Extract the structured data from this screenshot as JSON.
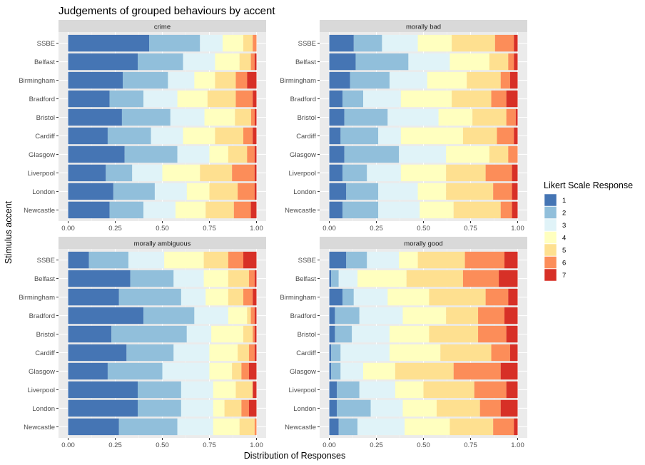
{
  "chart_data": {
    "type": "bar",
    "orientation": "horizontal",
    "stacked": true,
    "title": "Judgements of grouped behaviours by accent",
    "xlabel": "Distribution of Responses",
    "ylabel": "Stimulus accent",
    "xlim": [
      0,
      1
    ],
    "xticks": [
      "0.00",
      "0.25",
      "0.50",
      "0.75",
      "1.00"
    ],
    "grid": true,
    "legend": {
      "title": "Likert Scale Response",
      "position": "right",
      "entries": [
        "1",
        "2",
        "3",
        "4",
        "5",
        "6",
        "7"
      ],
      "colors": [
        "#4575b4",
        "#91bfdb",
        "#e0f3f8",
        "#ffffbf",
        "#fee090",
        "#fc8d59",
        "#d73027"
      ]
    },
    "categories": [
      "SSBE",
      "Belfast",
      "Birmingham",
      "Bradford",
      "Bristol",
      "Cardiff",
      "Glasgow",
      "Liverpool",
      "London",
      "Newcastle"
    ],
    "panels": [
      {
        "title": "crime",
        "rows": [
          [
            0.43,
            0.27,
            0.12,
            0.11,
            0.05,
            0.02,
            0.0
          ],
          [
            0.37,
            0.24,
            0.17,
            0.13,
            0.06,
            0.02,
            0.01
          ],
          [
            0.29,
            0.24,
            0.14,
            0.11,
            0.11,
            0.06,
            0.05
          ],
          [
            0.22,
            0.18,
            0.18,
            0.16,
            0.15,
            0.09,
            0.02
          ],
          [
            0.3,
            0.27,
            0.19,
            0.17,
            0.09,
            0.02,
            0.01
          ],
          [
            0.21,
            0.23,
            0.17,
            0.17,
            0.15,
            0.05,
            0.02
          ],
          [
            0.3,
            0.28,
            0.17,
            0.1,
            0.1,
            0.04,
            0.01
          ],
          [
            0.2,
            0.14,
            0.16,
            0.2,
            0.17,
            0.12,
            0.01
          ],
          [
            0.24,
            0.22,
            0.17,
            0.12,
            0.15,
            0.09,
            0.01
          ],
          [
            0.22,
            0.18,
            0.17,
            0.16,
            0.15,
            0.09,
            0.03
          ]
        ]
      },
      {
        "title": "morally bad",
        "rows": [
          [
            0.13,
            0.15,
            0.19,
            0.18,
            0.23,
            0.1,
            0.02
          ],
          [
            0.14,
            0.28,
            0.22,
            0.21,
            0.1,
            0.03,
            0.02
          ],
          [
            0.11,
            0.21,
            0.2,
            0.21,
            0.18,
            0.05,
            0.04
          ],
          [
            0.07,
            0.11,
            0.2,
            0.27,
            0.21,
            0.08,
            0.06
          ],
          [
            0.08,
            0.23,
            0.27,
            0.18,
            0.18,
            0.05,
            0.01
          ],
          [
            0.06,
            0.2,
            0.12,
            0.33,
            0.18,
            0.09,
            0.02
          ],
          [
            0.08,
            0.29,
            0.25,
            0.23,
            0.1,
            0.05,
            0.0
          ],
          [
            0.07,
            0.13,
            0.18,
            0.24,
            0.21,
            0.14,
            0.03
          ],
          [
            0.09,
            0.17,
            0.21,
            0.15,
            0.25,
            0.1,
            0.03
          ],
          [
            0.07,
            0.19,
            0.22,
            0.18,
            0.25,
            0.06,
            0.03
          ]
        ]
      },
      {
        "title": "morally ambiguous",
        "rows": [
          [
            0.11,
            0.21,
            0.19,
            0.21,
            0.13,
            0.08,
            0.07
          ],
          [
            0.33,
            0.23,
            0.16,
            0.13,
            0.11,
            0.03,
            0.01
          ],
          [
            0.27,
            0.33,
            0.13,
            0.12,
            0.08,
            0.05,
            0.02
          ],
          [
            0.4,
            0.27,
            0.18,
            0.1,
            0.02,
            0.02,
            0.01
          ],
          [
            0.23,
            0.4,
            0.13,
            0.17,
            0.05,
            0.01,
            0.01
          ],
          [
            0.31,
            0.25,
            0.19,
            0.15,
            0.06,
            0.03,
            0.01
          ],
          [
            0.21,
            0.29,
            0.25,
            0.12,
            0.05,
            0.04,
            0.04
          ],
          [
            0.37,
            0.23,
            0.17,
            0.12,
            0.09,
            0.0,
            0.02
          ],
          [
            0.37,
            0.23,
            0.17,
            0.06,
            0.09,
            0.04,
            0.04
          ],
          [
            0.27,
            0.31,
            0.19,
            0.14,
            0.08,
            0.01,
            0.0
          ]
        ]
      },
      {
        "title": "morally good",
        "rows": [
          [
            0.09,
            0.11,
            0.17,
            0.1,
            0.25,
            0.21,
            0.07
          ],
          [
            0.01,
            0.04,
            0.1,
            0.26,
            0.3,
            0.19,
            0.1
          ],
          [
            0.07,
            0.06,
            0.18,
            0.22,
            0.3,
            0.12,
            0.05
          ],
          [
            0.03,
            0.13,
            0.23,
            0.23,
            0.17,
            0.14,
            0.07
          ],
          [
            0.03,
            0.09,
            0.2,
            0.21,
            0.26,
            0.15,
            0.06
          ],
          [
            0.01,
            0.05,
            0.26,
            0.27,
            0.27,
            0.1,
            0.04
          ],
          [
            0.01,
            0.05,
            0.12,
            0.17,
            0.31,
            0.25,
            0.09
          ],
          [
            0.04,
            0.12,
            0.19,
            0.15,
            0.27,
            0.17,
            0.06
          ],
          [
            0.04,
            0.18,
            0.17,
            0.18,
            0.23,
            0.11,
            0.09
          ],
          [
            0.05,
            0.1,
            0.25,
            0.24,
            0.23,
            0.11,
            0.02
          ]
        ]
      }
    ]
  }
}
